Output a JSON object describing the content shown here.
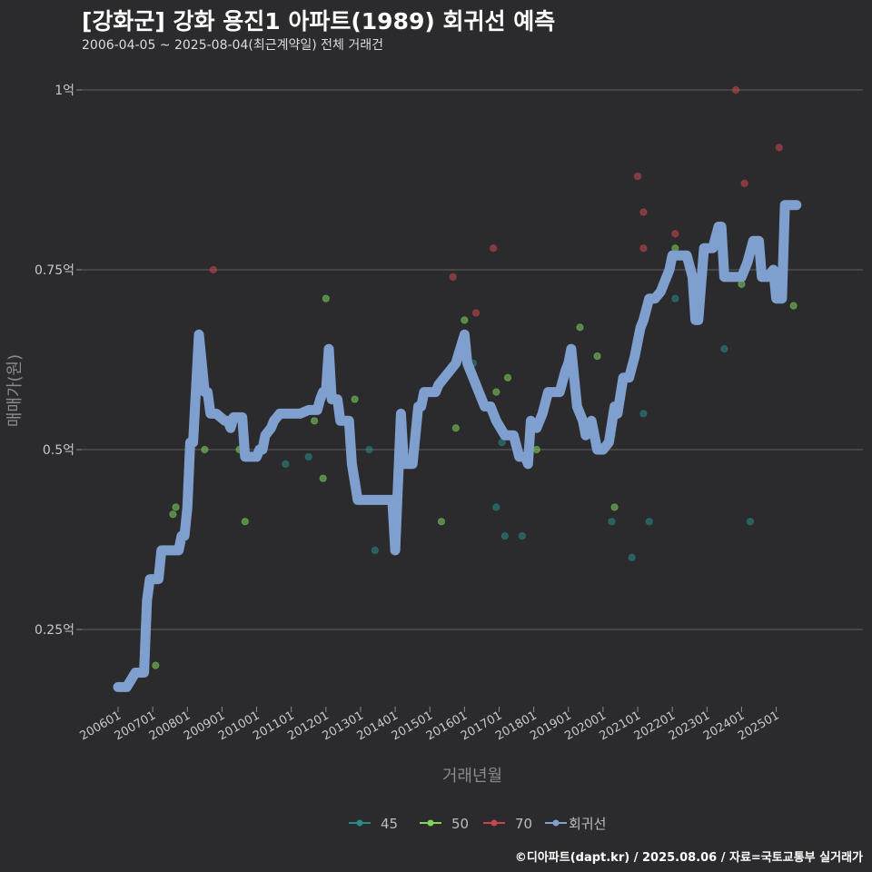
{
  "header": {
    "title": "[강화군] 강화 용진1 아파트(1989) 회귀선 예측",
    "subtitle": "2006-04-05 ~ 2025-08-04(최근계약일) 전체 거래건"
  },
  "footer": {
    "credit": "©디아파트(dapt.kr) / 2025.08.06 / 자료=국토교통부 실거래가"
  },
  "colors": {
    "s45": "#2a8a8a",
    "s50": "#7fd35a",
    "s70": "#c8474f",
    "regression": "#7f9fcf",
    "grid": "#5f5f5f"
  },
  "chart_data": {
    "type": "scatter",
    "title": "[강화군] 강화 용진1 아파트(1989) 회귀선 예측",
    "subtitle": "2006-04-05 ~ 2025-08-04(최근계약일) 전체 거래건",
    "xlabel": "거래년월",
    "ylabel": "매매가(원)",
    "x_range": [
      "2006-01",
      "2025-08"
    ],
    "ylim": [
      0.12,
      1.04
    ],
    "y_unit": "억",
    "y_ticks": [
      {
        "value": 0.25,
        "label": "0.25억"
      },
      {
        "value": 0.5,
        "label": "0.5억"
      },
      {
        "value": 0.75,
        "label": "0.75억"
      },
      {
        "value": 1.0,
        "label": "1억"
      }
    ],
    "x_ticks": [
      "200601",
      "200701",
      "200801",
      "200901",
      "201001",
      "201101",
      "201201",
      "201301",
      "201401",
      "201501",
      "201601",
      "201701",
      "201801",
      "201901",
      "202001",
      "202101",
      "202201",
      "202301",
      "202401",
      "202501"
    ],
    "grid": true,
    "legend_position": "bottom",
    "legend": [
      "45",
      "50",
      "70",
      "회귀선"
    ],
    "series": [
      {
        "name": "45",
        "type": "scatter",
        "points": [
          [
            "2010-10",
            0.48
          ],
          [
            "2011-06",
            0.49
          ],
          [
            "2013-03",
            0.5
          ],
          [
            "2013-05",
            0.36
          ],
          [
            "2016-03",
            0.62
          ],
          [
            "2016-11",
            0.42
          ],
          [
            "2017-01",
            0.51
          ],
          [
            "2017-02",
            0.38
          ],
          [
            "2017-08",
            0.38
          ],
          [
            "2020-03",
            0.4
          ],
          [
            "2020-10",
            0.35
          ],
          [
            "2020-12",
            0.65
          ],
          [
            "2021-02",
            0.55
          ],
          [
            "2021-04",
            0.4
          ],
          [
            "2022-01",
            0.71
          ],
          [
            "2023-06",
            0.64
          ],
          [
            "2024-03",
            0.4
          ]
        ]
      },
      {
        "name": "50",
        "type": "scatter",
        "points": [
          [
            "2007-01",
            0.2
          ],
          [
            "2007-07",
            0.41
          ],
          [
            "2007-08",
            0.42
          ],
          [
            "2008-06",
            0.5
          ],
          [
            "2009-06",
            0.5
          ],
          [
            "2009-08",
            0.4
          ],
          [
            "2011-08",
            0.54
          ],
          [
            "2011-11",
            0.46
          ],
          [
            "2012-00",
            0.71
          ],
          [
            "2012-10",
            0.57
          ],
          [
            "2015-04",
            0.4
          ],
          [
            "2015-09",
            0.53
          ],
          [
            "2016-00",
            0.68
          ],
          [
            "2016-11",
            0.58
          ],
          [
            "2017-03",
            0.6
          ],
          [
            "2018-01",
            0.5
          ],
          [
            "2019-04",
            0.67
          ],
          [
            "2019-10",
            0.63
          ],
          [
            "2020-03",
            0.52
          ],
          [
            "2020-04",
            0.42
          ],
          [
            "2021-04",
            0.71
          ],
          [
            "2022-01",
            0.78
          ],
          [
            "2024-00",
            0.73
          ],
          [
            "2025-06",
            0.7
          ]
        ]
      },
      {
        "name": "70",
        "type": "scatter",
        "points": [
          [
            "2008-09",
            0.75
          ],
          [
            "2015-08",
            0.74
          ],
          [
            "2016-04",
            0.69
          ],
          [
            "2016-10",
            0.78
          ],
          [
            "2021-00",
            0.88
          ],
          [
            "2021-02",
            0.83
          ],
          [
            "2021-02",
            0.78
          ],
          [
            "2022-01",
            0.8
          ],
          [
            "2023-10",
            1.0
          ],
          [
            "2024-01",
            0.87
          ],
          [
            "2025-01",
            0.92
          ]
        ]
      },
      {
        "name": "회귀선",
        "type": "line",
        "points": [
          [
            "2006-00",
            0.17
          ],
          [
            "2006-03",
            0.17
          ],
          [
            "2006-06",
            0.19
          ],
          [
            "2006-09",
            0.19
          ],
          [
            "2006-10",
            0.29
          ],
          [
            "2006-11",
            0.32
          ],
          [
            "2007-02",
            0.32
          ],
          [
            "2007-03",
            0.36
          ],
          [
            "2007-09",
            0.36
          ],
          [
            "2007-10",
            0.38
          ],
          [
            "2007-11",
            0.38
          ],
          [
            "2007-12",
            0.42
          ],
          [
            "2008-01",
            0.51
          ],
          [
            "2008-02",
            0.51
          ],
          [
            "2008-04",
            0.66
          ],
          [
            "2008-05",
            0.62
          ],
          [
            "2008-06",
            0.58
          ],
          [
            "2008-07",
            0.58
          ],
          [
            "2008-08",
            0.55
          ],
          [
            "2008-10",
            0.55
          ],
          [
            "2009-01",
            0.54
          ],
          [
            "2009-02",
            0.54
          ],
          [
            "2009-03",
            0.53
          ],
          [
            "2009-04",
            0.545
          ],
          [
            "2009-07",
            0.545
          ],
          [
            "2009-08",
            0.49
          ],
          [
            "2010-00",
            0.49
          ],
          [
            "2010-01",
            0.5
          ],
          [
            "2010-02",
            0.5
          ],
          [
            "2010-03",
            0.52
          ],
          [
            "2010-05",
            0.53
          ],
          [
            "2010-06",
            0.54
          ],
          [
            "2010-08",
            0.55
          ],
          [
            "2011-00",
            0.55
          ],
          [
            "2011-03",
            0.55
          ],
          [
            "2011-06",
            0.555
          ],
          [
            "2011-09",
            0.555
          ],
          [
            "2011-10",
            0.57
          ],
          [
            "2011-11",
            0.58
          ],
          [
            "2012-00",
            0.58
          ],
          [
            "2012-01",
            0.64
          ],
          [
            "2012-02",
            0.57
          ],
          [
            "2012-04",
            0.57
          ],
          [
            "2012-05",
            0.54
          ],
          [
            "2012-08",
            0.54
          ],
          [
            "2012-09",
            0.48
          ],
          [
            "2012-11",
            0.43
          ],
          [
            "2013-01",
            0.43
          ],
          [
            "2013-07",
            0.43
          ],
          [
            "2013-11",
            0.43
          ],
          [
            "2013-12",
            0.36
          ],
          [
            "2014-00",
            0.36
          ],
          [
            "2014-02",
            0.55
          ],
          [
            "2014-03",
            0.48
          ],
          [
            "2014-06",
            0.48
          ],
          [
            "2014-08",
            0.56
          ],
          [
            "2014-09",
            0.56
          ],
          [
            "2014-10",
            0.58
          ],
          [
            "2015-02",
            0.58
          ],
          [
            "2015-03",
            0.59
          ],
          [
            "2015-05",
            0.6
          ],
          [
            "2015-07",
            0.61
          ],
          [
            "2015-09",
            0.62
          ],
          [
            "2016-00",
            0.66
          ],
          [
            "2016-01",
            0.62
          ],
          [
            "2016-03",
            0.6
          ],
          [
            "2016-05",
            0.58
          ],
          [
            "2016-07",
            0.56
          ],
          [
            "2016-09",
            0.56
          ],
          [
            "2016-11",
            0.54
          ],
          [
            "2017-02",
            0.52
          ],
          [
            "2017-05",
            0.52
          ],
          [
            "2017-07",
            0.49
          ],
          [
            "2017-09",
            0.49
          ],
          [
            "2017-10",
            0.48
          ],
          [
            "2017-11",
            0.54
          ],
          [
            "2018-01",
            0.53
          ],
          [
            "2018-03",
            0.55
          ],
          [
            "2018-05",
            0.58
          ],
          [
            "2018-07",
            0.58
          ],
          [
            "2018-09",
            0.58
          ],
          [
            "2018-11",
            0.61
          ],
          [
            "2019-00",
            0.62
          ],
          [
            "2019-01",
            0.64
          ],
          [
            "2019-03",
            0.56
          ],
          [
            "2019-05",
            0.54
          ],
          [
            "2019-06",
            0.52
          ],
          [
            "2019-08",
            0.54
          ],
          [
            "2019-10",
            0.5
          ],
          [
            "2020-00",
            0.5
          ],
          [
            "2020-02",
            0.51
          ],
          [
            "2020-04",
            0.56
          ],
          [
            "2020-05",
            0.55
          ],
          [
            "2020-07",
            0.6
          ],
          [
            "2020-09",
            0.6
          ],
          [
            "2020-11",
            0.63
          ],
          [
            "2021-00",
            0.65
          ],
          [
            "2021-01",
            0.67
          ],
          [
            "2021-02",
            0.68
          ],
          [
            "2021-04",
            0.71
          ],
          [
            "2021-06",
            0.71
          ],
          [
            "2021-08",
            0.72
          ],
          [
            "2021-09",
            0.73
          ],
          [
            "2021-11",
            0.75
          ],
          [
            "2022-00",
            0.77
          ],
          [
            "2022-02",
            0.77
          ],
          [
            "2022-05",
            0.77
          ],
          [
            "2022-07",
            0.74
          ],
          [
            "2022-08",
            0.68
          ],
          [
            "2022-09",
            0.68
          ],
          [
            "2022-10",
            0.73
          ],
          [
            "2022-11",
            0.78
          ],
          [
            "2023-02",
            0.78
          ],
          [
            "2023-04",
            0.81
          ],
          [
            "2023-05",
            0.81
          ],
          [
            "2023-06",
            0.74
          ],
          [
            "2023-08",
            0.74
          ],
          [
            "2023-11",
            0.74
          ],
          [
            "2023-12",
            0.74
          ],
          [
            "2024-02",
            0.76
          ],
          [
            "2024-04",
            0.79
          ],
          [
            "2024-06",
            0.79
          ],
          [
            "2024-07",
            0.74
          ],
          [
            "2024-09",
            0.74
          ],
          [
            "2024-11",
            0.75
          ],
          [
            "2025-00",
            0.71
          ],
          [
            "2025-02",
            0.71
          ],
          [
            "2025-03",
            0.84
          ],
          [
            "2025-07",
            0.84
          ]
        ]
      }
    ]
  }
}
